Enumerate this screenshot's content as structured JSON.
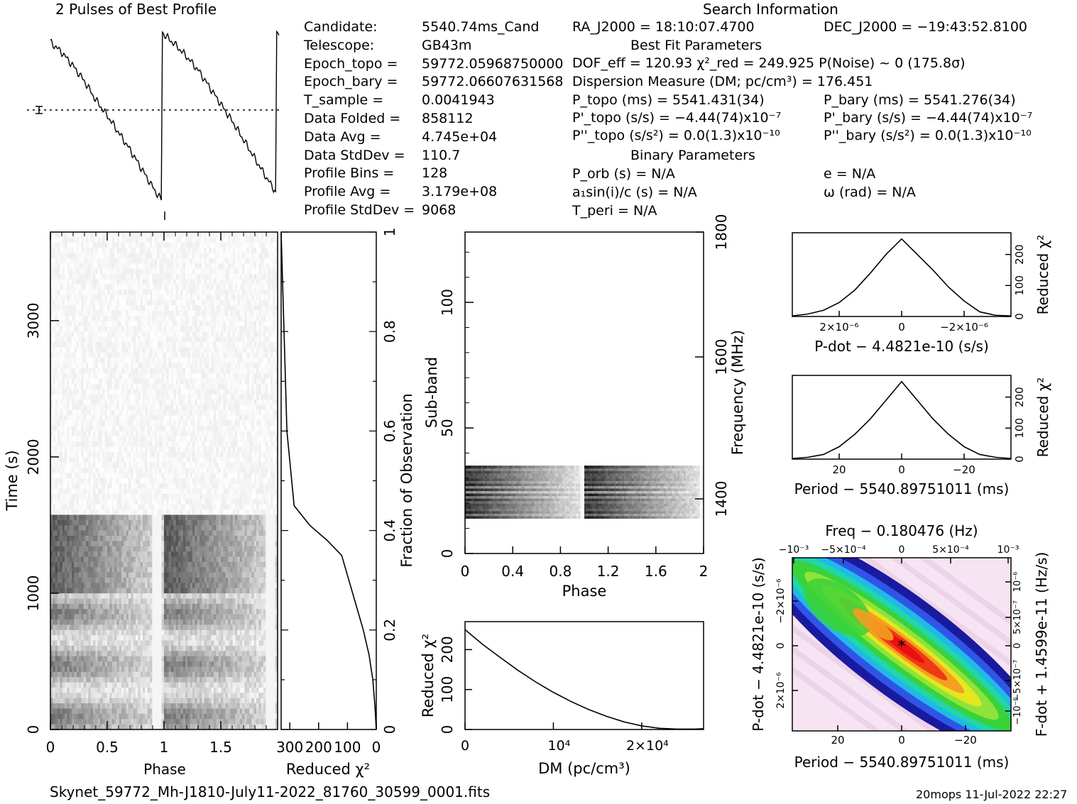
{
  "title": "2 Pulses of Best Profile",
  "search_header": "Search Information",
  "footer": {
    "filename": "Skynet_59772_Mh-J1810-July11-2022_81760_30599_0001.fits",
    "stamp": "20mops  11-Jul-2022 22:27"
  },
  "info_left": [
    {
      "label": "Candidate:",
      "value": "5540.74ms_Cand"
    },
    {
      "label": "Telescope:",
      "value": "GB43m"
    },
    {
      "label": "Epoch_topo =",
      "value": "59772.05968750000"
    },
    {
      "label": "Epoch_bary =",
      "value": "59772.06607631568"
    },
    {
      "label": "T_sample =",
      "value": "0.0041943"
    },
    {
      "label": "Data Folded =",
      "value": "858112"
    },
    {
      "label": "Data Avg =",
      "value": "4.745e+04"
    },
    {
      "label": "Data StdDev =",
      "value": "110.7"
    },
    {
      "label": "Profile Bins =",
      "value": "128"
    },
    {
      "label": "Profile Avg =",
      "value": "3.179e+08"
    },
    {
      "label": "Profile StdDev =",
      "value": "9068"
    }
  ],
  "info_right": {
    "ra": "RA_J2000 = 18:10:07.4700",
    "dec": "DEC_J2000 = −19:43:52.8100",
    "best_fit_header": "Best Fit Parameters",
    "dof_line": "DOF_eff = 120.93  χ²_red = 249.925  P(Noise) ~ 0   (175.8σ)",
    "dm_line": "Dispersion Measure (DM; pc/cm³) = 176.451",
    "p_topo": "P_topo (ms) =  5541.431(34)",
    "p_bary": "P_bary (ms) =  5541.276(34)",
    "pd_topo": "P'_topo (s/s) = −4.44(74)x10⁻⁷",
    "pd_bary": "P'_bary (s/s) = −4.44(74)x10⁻⁷",
    "pdd_topo": "P''_topo (s/s²) = 0.0(1.3)x10⁻¹⁰",
    "pdd_bary": "P''_bary (s/s²) = 0.0(1.3)x10⁻¹⁰",
    "binary_header": "Binary Parameters",
    "porb": "P_orb (s) = N/A",
    "ecc": "e = N/A",
    "a1sini": "a₁sin(i)/c (s) = N/A",
    "omega": "ω (rad) = N/A",
    "tperi": "T_peri = N/A"
  },
  "chart_data": [
    {
      "id": "profile",
      "type": "line",
      "title": "2 Pulses of Best Profile",
      "x_range": [
        0,
        2
      ],
      "y_range": [
        0,
        1
      ],
      "note": "sawtooth profile, two pulses, normalized amplitude",
      "x": [
        0.0,
        0.1,
        0.2,
        0.3,
        0.4,
        0.5,
        0.6,
        0.7,
        0.8,
        0.9,
        0.97,
        0.98,
        1.0,
        1.1,
        1.2,
        1.3,
        1.4,
        1.5,
        1.6,
        1.7,
        1.8,
        1.9,
        1.97,
        1.98,
        2.0
      ],
      "y": [
        0.92,
        0.86,
        0.78,
        0.69,
        0.58,
        0.49,
        0.39,
        0.29,
        0.18,
        0.07,
        0.0,
        0.98,
        0.96,
        0.9,
        0.83,
        0.75,
        0.65,
        0.55,
        0.45,
        0.34,
        0.23,
        0.12,
        0.05,
        0.98,
        0.96
      ]
    },
    {
      "id": "time-phase",
      "type": "heatmap",
      "xlabel": "Phase",
      "ylabel": "Time (s)",
      "x_range": [
        0,
        2
      ],
      "y_range": [
        0,
        3650
      ],
      "x_ticks": [
        "0",
        "0.5",
        "1",
        "1.5"
      ],
      "y_ticks": [
        "0",
        "1000",
        "2000",
        "3000"
      ],
      "bright_band_time_s": [
        1000,
        1570
      ]
    },
    {
      "id": "time-chi2",
      "type": "line",
      "xlabel": "Reduced χ²",
      "ylabel": "Fraction of Observation",
      "x_range": [
        0,
        330
      ],
      "y_range": [
        0,
        1
      ],
      "x_ticks": [
        "300",
        "200",
        "100",
        "0"
      ],
      "y_ticks": [
        "0",
        "0.2",
        "0.4",
        "0.6",
        "0.8",
        "1"
      ],
      "x": [
        0,
        5,
        12,
        25,
        45,
        70,
        95,
        120,
        170,
        230,
        285,
        310,
        320,
        330
      ],
      "y": [
        0.0,
        0.05,
        0.1,
        0.15,
        0.2,
        0.25,
        0.3,
        0.35,
        0.38,
        0.41,
        0.45,
        0.6,
        0.8,
        1.0
      ]
    },
    {
      "id": "subband",
      "type": "heatmap",
      "xlabel": "Phase",
      "ylabel": "Sub-band",
      "y2label": "Frequency (MHz)",
      "x_range": [
        0,
        2
      ],
      "y_range": [
        0,
        128
      ],
      "x_ticks": [
        "0",
        "0.4",
        "0.8",
        "1.2",
        "1.6",
        "2"
      ],
      "y_ticks": [
        "0",
        "50",
        "100"
      ],
      "y2_ticks": [
        "1400",
        "1600",
        "1800"
      ],
      "signal_subbands": [
        14,
        35
      ]
    },
    {
      "id": "dm-chi2",
      "type": "line",
      "xlabel": "DM (pc/cm³)",
      "ylabel": "Reduced χ²",
      "x_range": [
        0,
        27000
      ],
      "y_range": [
        0,
        270
      ],
      "x_ticks": [
        "0",
        "10⁴",
        "2×10⁴"
      ],
      "y_ticks": [
        "0",
        "100",
        "200"
      ],
      "x": [
        0,
        2000,
        4000,
        6000,
        8000,
        10000,
        12000,
        14000,
        16000,
        18000,
        20000,
        22000,
        24000,
        26000,
        27000
      ],
      "y": [
        250,
        213,
        180,
        148,
        119,
        93,
        70,
        50,
        33,
        19,
        9,
        3,
        1,
        1,
        2
      ]
    },
    {
      "id": "pdot-chi2",
      "type": "line",
      "xlabel": "P-dot − 4.4821e-10 (s/s)",
      "ylabel": "Reduced χ²",
      "x_range": [
        3.5e-06,
        -3.5e-06
      ],
      "y_range": [
        0,
        270
      ],
      "x_ticks": [
        "2×10⁻⁶",
        "0",
        "−2×10⁻⁶"
      ],
      "y_ticks": [
        "0",
        "100",
        "200"
      ],
      "x": [
        3.5e-06,
        3e-06,
        2.5e-06,
        2e-06,
        1.5e-06,
        1e-06,
        5e-07,
        0,
        -5e-07,
        -1e-06,
        -1.5e-06,
        -2e-06,
        -2.5e-06,
        -3e-06,
        -3.5e-06
      ],
      "y": [
        2,
        8,
        20,
        45,
        85,
        140,
        200,
        250,
        200,
        150,
        95,
        50,
        15,
        4,
        2
      ]
    },
    {
      "id": "period-chi2",
      "type": "line",
      "xlabel": "Period − 5540.89751011 (ms)",
      "ylabel": "Reduced χ²",
      "x_range": [
        35,
        -35
      ],
      "y_range": [
        0,
        270
      ],
      "x_ticks": [
        "20",
        "0",
        "−20"
      ],
      "y_ticks": [
        "0",
        "100",
        "200"
      ],
      "x": [
        35,
        30,
        25,
        20,
        15,
        10,
        5,
        0,
        -5,
        -10,
        -15,
        -20,
        -25,
        -30,
        -35
      ],
      "y": [
        2,
        6,
        15,
        40,
        80,
        130,
        190,
        250,
        190,
        130,
        80,
        40,
        15,
        6,
        2
      ]
    },
    {
      "id": "p-pdot",
      "type": "heatmap",
      "title": "Freq − 0.180476 (Hz)",
      "xlabel": "Period − 5540.89751011 (ms)",
      "ylabel": "P-dot − 4.4821e-10 (s/s)",
      "y2label": "F-dot + 1.4599e-11 (Hz/s)",
      "x_ticks": [
        "20",
        "0",
        "−20"
      ],
      "x2_ticks": [
        "−10⁻³",
        "−5×10⁻⁴",
        "0",
        "5×10⁻⁴",
        "10⁻³"
      ],
      "y_ticks": [
        "2×10⁻⁶",
        "0",
        "−2×10⁻⁶"
      ],
      "y2_ticks": [
        "−10⁻⁶",
        "−5×10⁻⁷",
        "0",
        "5×10⁻⁷",
        "10⁻⁶"
      ]
    }
  ]
}
